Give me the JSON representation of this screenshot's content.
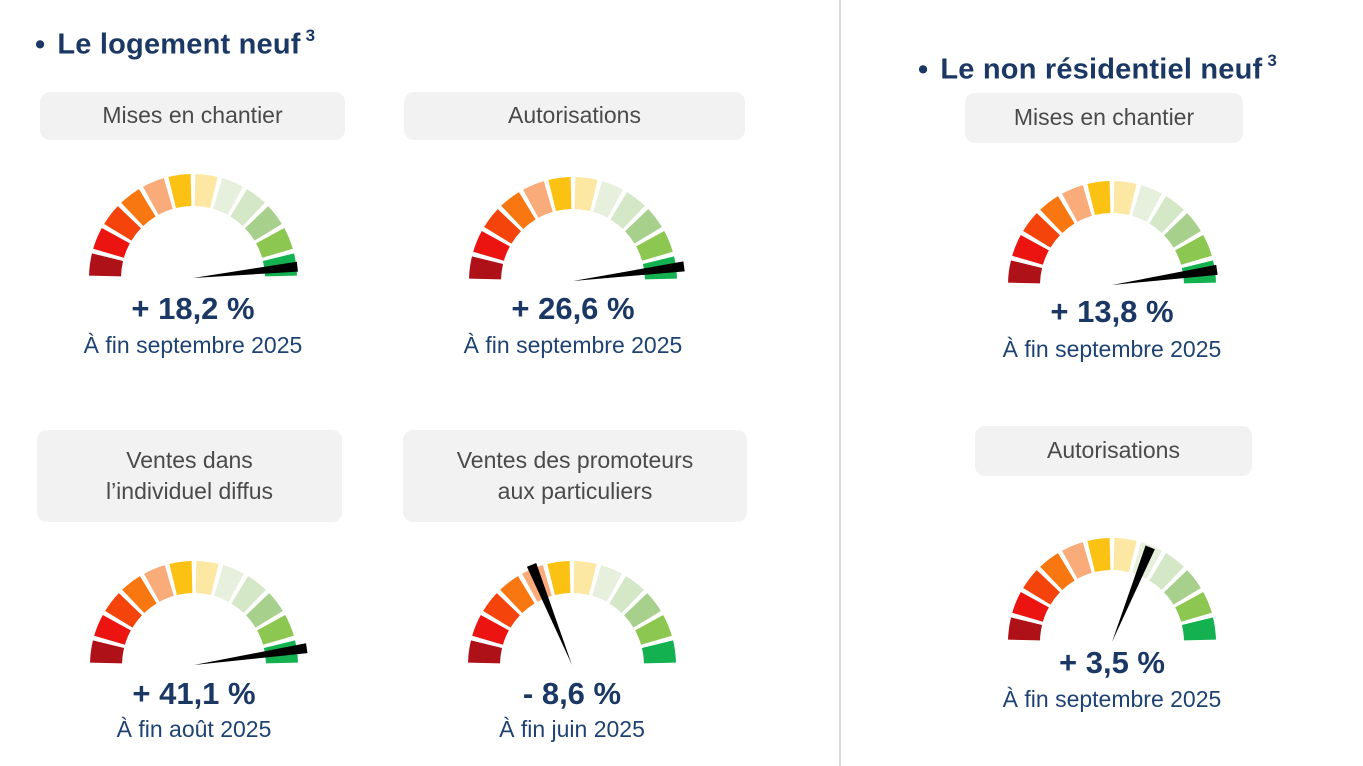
{
  "page": {
    "background": "#ffffff",
    "divider_color": "#dbdbdb"
  },
  "sections": {
    "left": {
      "bullet": "•",
      "title": "Le logement neuf",
      "superscript": "3"
    },
    "right": {
      "bullet": "•",
      "title": "Le non résidentiel neuf",
      "superscript": "3"
    }
  },
  "gauge_style": {
    "segment_colors": [
      "#AE1117",
      "#EC1410",
      "#F4440C",
      "#F97711",
      "#F9AC79",
      "#FCC213",
      "#FCE8A2",
      "#E6F0DC",
      "#D4E7C6",
      "#A8D08D",
      "#8CC751",
      "#14B150"
    ],
    "needle_color": "#000000",
    "value_color": "#1b3865",
    "period_color": "#1e4373",
    "label_bg": "#f2f2f2",
    "label_text_color": "#4a4a4a"
  },
  "chart_data": [
    {
      "type": "gauge",
      "section": "Le logement neuf",
      "label": "Mises en chantier",
      "value_pct": 18.2,
      "value_label": "+ 18,2 %",
      "period": "À fin septembre 2025",
      "needle_angle_deg": 6.2,
      "needle_length": 105,
      "scale_segments": 12
    },
    {
      "type": "gauge",
      "section": "Le logement neuf",
      "label": "Autorisations",
      "value_pct": 26.6,
      "value_label": "+ 26,6 %",
      "period": "À fin septembre 2025",
      "needle_angle_deg": 7.5,
      "needle_length": 112,
      "scale_segments": 12
    },
    {
      "type": "gauge",
      "section": "Le logement neuf",
      "label": "Ventes dans l’individuel diffus",
      "value_pct": 41.1,
      "value_label": "+ 41,1 %",
      "period": "À fin août 2025",
      "needle_angle_deg": 8.5,
      "needle_length": 114,
      "scale_segments": 12
    },
    {
      "type": "gauge",
      "section": "Le logement neuf",
      "label": "Ventes des promoteurs aux particuliers",
      "value_pct": -8.6,
      "value_label": "- 8,6 %",
      "period": "À fin juin 2025",
      "needle_angle_deg": 112,
      "needle_length": 108,
      "scale_segments": 12
    },
    {
      "type": "gauge",
      "section": "Le non résidentiel neuf",
      "label": "Mises en chantier",
      "value_pct": 13.8,
      "value_label": "+ 13,8 %",
      "period": "À fin septembre 2025",
      "needle_angle_deg": 8.2,
      "needle_length": 106,
      "scale_segments": 12
    },
    {
      "type": "gauge",
      "section": "Le non résidentiel neuf",
      "label": "Autorisations",
      "value_pct": 3.5,
      "value_label": "+ 3,5 %",
      "period": "À fin septembre 2025",
      "needle_angle_deg": 68,
      "needle_length": 102,
      "scale_segments": 12
    }
  ]
}
